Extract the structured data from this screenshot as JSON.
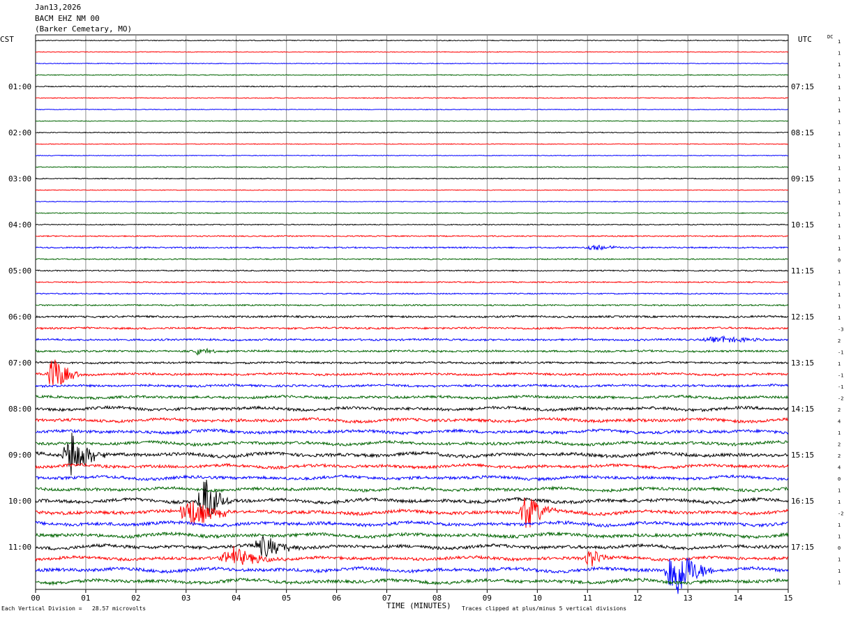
{
  "header": {
    "date": "Jan13,2026",
    "station": "BACM EHZ NM 00",
    "location": "(Barker Cemetary, MO)"
  },
  "left_zone_label": "CST",
  "right_zone_label": "UTC",
  "dc_label": "DC",
  "footer": {
    "scale_note": "Each Vertical Division =   28.57 microvolts",
    "clip_note": "Traces clipped at plus/minus 5 vertical divisions"
  },
  "chart_data": {
    "type": "helicorder",
    "xlabel": "TIME (MINUTES)",
    "xlim": [
      0,
      15
    ],
    "x_ticks": [
      "00",
      "01",
      "02",
      "03",
      "04",
      "05",
      "06",
      "07",
      "08",
      "09",
      "10",
      "11",
      "12",
      "13",
      "14",
      "15"
    ],
    "trace_count": 48,
    "trace_minutes": 15,
    "trace_color_cycle": [
      "#000000",
      "#ff0000",
      "#0000ff",
      "#006400"
    ],
    "left_hour_labels": [
      {
        "trace": 4,
        "label": "01:00"
      },
      {
        "trace": 8,
        "label": "02:00"
      },
      {
        "trace": 12,
        "label": "03:00"
      },
      {
        "trace": 16,
        "label": "04:00"
      },
      {
        "trace": 20,
        "label": "05:00"
      },
      {
        "trace": 24,
        "label": "06:00"
      },
      {
        "trace": 28,
        "label": "07:00"
      },
      {
        "trace": 32,
        "label": "08:00"
      },
      {
        "trace": 36,
        "label": "09:00"
      },
      {
        "trace": 40,
        "label": "10:00"
      },
      {
        "trace": 44,
        "label": "11:00"
      }
    ],
    "right_hour_labels": [
      {
        "trace": 4,
        "label": "07:15"
      },
      {
        "trace": 8,
        "label": "08:15"
      },
      {
        "trace": 12,
        "label": "09:15"
      },
      {
        "trace": 16,
        "label": "10:15"
      },
      {
        "trace": 20,
        "label": "11:15"
      },
      {
        "trace": 24,
        "label": "12:15"
      },
      {
        "trace": 28,
        "label": "13:15"
      },
      {
        "trace": 32,
        "label": "14:15"
      },
      {
        "trace": 36,
        "label": "15:15"
      },
      {
        "trace": 40,
        "label": "16:15"
      },
      {
        "trace": 44,
        "label": "17:15"
      }
    ],
    "dc_offsets": [
      "1",
      "1",
      "1",
      "1",
      "1",
      "1",
      "1",
      "1",
      "1",
      "1",
      "1",
      "1",
      "1",
      "1",
      "1",
      "1",
      "1",
      "1",
      "1",
      "0",
      "1",
      "1",
      "1",
      "1",
      "1",
      "-3",
      "2",
      "-1",
      "1",
      "-1",
      "-1",
      "-2",
      "2",
      "4",
      "1",
      "2",
      "2",
      "4",
      "0",
      "1",
      "1",
      "-2",
      "1",
      "1",
      "0",
      "1",
      "1",
      "1"
    ],
    "background_noise": [
      0.6,
      0.5,
      0.5,
      0.6,
      0.7,
      0.6,
      0.5,
      0.5,
      0.6,
      0.5,
      0.5,
      0.6,
      0.6,
      0.5,
      0.5,
      0.6,
      0.7,
      0.8,
      1.0,
      0.8,
      0.8,
      0.8,
      0.8,
      1.0,
      1.3,
      1.3,
      1.3,
      1.3,
      1.3,
      1.5,
      1.5,
      1.7,
      2.0,
      2.0,
      2.0,
      2.0,
      2.2,
      2.0,
      2.0,
      2.0,
      2.2,
      2.2,
      2.2,
      2.2,
      2.2,
      2.0,
      2.2,
      2.2
    ],
    "events": [
      {
        "trace": 18,
        "start_min": 10.8,
        "end_min": 12.2,
        "amplitude": 4
      },
      {
        "trace": 26,
        "start_min": 13.2,
        "end_min": 15.0,
        "amplitude": 5
      },
      {
        "trace": 27,
        "start_min": 3.0,
        "end_min": 4.0,
        "amplitude": 5
      },
      {
        "trace": 29,
        "start_min": 0.2,
        "end_min": 0.9,
        "amplitude": 30
      },
      {
        "trace": 36,
        "start_min": 0.5,
        "end_min": 1.4,
        "amplitude": 38
      },
      {
        "trace": 40,
        "start_min": 3.2,
        "end_min": 3.9,
        "amplitude": 40
      },
      {
        "trace": 41,
        "start_min": 2.8,
        "end_min": 4.0,
        "amplitude": 22
      },
      {
        "trace": 41,
        "start_min": 9.6,
        "end_min": 10.4,
        "amplitude": 30
      },
      {
        "trace": 44,
        "start_min": 4.3,
        "end_min": 5.4,
        "amplitude": 18
      },
      {
        "trace": 45,
        "start_min": 3.6,
        "end_min": 5.0,
        "amplitude": 15
      },
      {
        "trace": 45,
        "start_min": 10.9,
        "end_min": 11.6,
        "amplitude": 14
      },
      {
        "trace": 46,
        "start_min": 12.5,
        "end_min": 13.5,
        "amplitude": 48
      }
    ]
  }
}
